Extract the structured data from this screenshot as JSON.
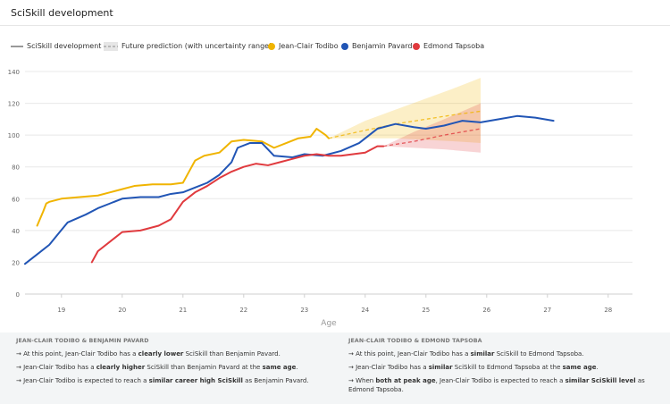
{
  "header": {
    "title": "SciSkill development"
  },
  "legend": {
    "sciskill_line": "SciSkill development",
    "prediction": "Future prediction (with uncertainty range)",
    "players": [
      {
        "name": "Jean-Clair Todibo",
        "color": "#f0b400"
      },
      {
        "name": "Benjamin Pavard",
        "color": "#2155b5"
      },
      {
        "name": "Edmond Tapsoba",
        "color": "#e03a3e"
      }
    ]
  },
  "chart_data": {
    "type": "line",
    "title": "SciSkill development",
    "xlabel": "Age",
    "ylabel": "",
    "xlim": [
      18.4,
      28.4
    ],
    "ylim": [
      0,
      140
    ],
    "x_ticks": [
      19,
      20,
      21,
      22,
      23,
      24,
      25,
      26,
      27,
      28
    ],
    "y_ticks": [
      0,
      20,
      40,
      60,
      80,
      100,
      120,
      140
    ],
    "series": [
      {
        "name": "Jean-Clair Todibo",
        "color": "#f0b400",
        "x": [
          18.6,
          18.7,
          18.75,
          18.8,
          19.0,
          19.3,
          19.6,
          19.8,
          20.0,
          20.2,
          20.5,
          20.8,
          21.0,
          21.1,
          21.2,
          21.35,
          21.6,
          21.8,
          22.0,
          22.3,
          22.5,
          22.7,
          22.9,
          23.1,
          23.2,
          23.35,
          23.4
        ],
        "y": [
          43,
          52,
          57,
          58,
          60,
          61,
          62,
          64,
          66,
          68,
          69,
          69,
          70,
          77,
          84,
          87,
          89,
          96,
          97,
          96,
          92,
          95,
          98,
          99,
          104,
          100,
          98
        ]
      },
      {
        "name": "Benjamin Pavard",
        "color": "#2155b5",
        "x": [
          18.4,
          18.6,
          18.8,
          18.95,
          19.1,
          19.4,
          19.6,
          19.8,
          20.0,
          20.3,
          20.6,
          20.8,
          21.0,
          21.2,
          21.4,
          21.6,
          21.8,
          21.9,
          22.1,
          22.3,
          22.5,
          22.8,
          23.0,
          23.3,
          23.6,
          23.9,
          24.2,
          24.5,
          24.8,
          25.0,
          25.3,
          25.6,
          25.9,
          26.2,
          26.5,
          26.8,
          27.1
        ],
        "y": [
          19,
          25,
          31,
          38,
          45,
          50,
          54,
          57,
          60,
          61,
          61,
          63,
          64,
          67,
          70,
          75,
          83,
          92,
          95,
          95,
          87,
          86,
          88,
          87,
          90,
          95,
          104,
          107,
          105,
          104,
          106,
          109,
          108,
          110,
          112,
          111,
          109
        ]
      },
      {
        "name": "Edmond Tapsoba",
        "color": "#e03a3e",
        "x": [
          19.5,
          19.6,
          19.8,
          20.0,
          20.3,
          20.6,
          20.8,
          21.0,
          21.2,
          21.4,
          21.6,
          21.8,
          22.0,
          22.2,
          22.4,
          22.6,
          22.8,
          23.0,
          23.2,
          23.4,
          23.6,
          23.8,
          24.0,
          24.2,
          24.3
        ],
        "y": [
          20,
          27,
          33,
          39,
          40,
          43,
          47,
          58,
          64,
          68,
          73,
          77,
          80,
          82,
          81,
          83,
          85,
          87,
          88,
          87,
          87,
          88,
          89,
          93,
          93
        ]
      }
    ],
    "predictions": [
      {
        "name": "Jean-Clair Todibo",
        "color": "#f0b400",
        "x": [
          23.4,
          24.0,
          24.5,
          25.0,
          25.5,
          25.9
        ],
        "mid": [
          98,
          103,
          107,
          110,
          113,
          115
        ],
        "low": [
          98,
          98,
          98,
          97,
          96,
          95
        ],
        "high": [
          98,
          109,
          116,
          123,
          130,
          136
        ]
      },
      {
        "name": "Edmond Tapsoba",
        "color": "#e03a3e",
        "x": [
          24.3,
          24.8,
          25.3,
          25.9
        ],
        "mid": [
          93,
          96,
          100,
          104
        ],
        "low": [
          93,
          92,
          91,
          89
        ],
        "high": [
          93,
          102,
          110,
          120
        ]
      }
    ]
  },
  "insights": {
    "left": {
      "title": "JEAN-CLAIR TODIBO & BENJAMIN PAVARD",
      "rows": [
        "→ At this point, Jean-Clair Todibo has a clearly lower SciSkill than Benjamin Pavard.",
        "→ Jean-Clair Todibo has a clearly higher SciSkill than Benjamin Pavard at the same age.",
        "→ Jean-Clair Todibo is expected to reach a similar career high SciSkill as Benjamin Pavard."
      ]
    },
    "right": {
      "title": "JEAN-CLAIR TODIBO & EDMOND TAPSOBA",
      "rows": [
        "→ At this point, Jean-Clair Todibo has a similar SciSkill to Edmond Tapsoba.",
        "→ Jean-Clair Todibo has a similar SciSkill to Edmond Tapsoba at the same age.",
        "→ When both at peak age, Jean-Clair Todibo is expected to reach a similar SciSkill level as Edmond Tapsoba."
      ]
    }
  }
}
